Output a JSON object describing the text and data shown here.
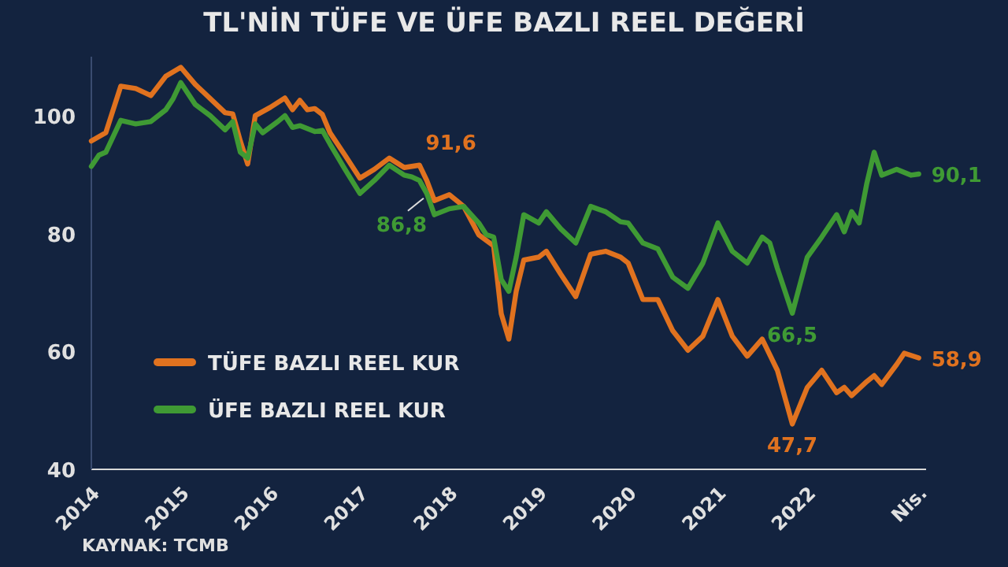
{
  "chart_data": {
    "type": "line",
    "title": "TL'NİN TÜFE VE ÜFE BAZLI REEL DEĞERİ",
    "xlim": [
      "2014-01",
      "2023-05"
    ],
    "ylim": [
      40,
      110
    ],
    "yticks": [
      40,
      60,
      80,
      100
    ],
    "xticks": [
      {
        "value": "2014-01",
        "label": "2014"
      },
      {
        "value": "2015-01",
        "label": "2015"
      },
      {
        "value": "2016-01",
        "label": "2016"
      },
      {
        "value": "2017-01",
        "label": "2017"
      },
      {
        "value": "2018-01",
        "label": "2018"
      },
      {
        "value": "2019-01",
        "label": "2019"
      },
      {
        "value": "2020-01",
        "label": "2020"
      },
      {
        "value": "2021-01",
        "label": "2021"
      },
      {
        "value": "2022-01",
        "label": "2022"
      },
      {
        "value": "2023-04",
        "label": "Nis."
      }
    ],
    "grid": false,
    "legend": "bottom left",
    "marker": "none",
    "line_style": "solid",
    "series": [
      {
        "name": "TÜFE BAZLI REEL KUR",
        "color": "#e0721f",
        "x": [
          "2014-01",
          "2014-03",
          "2014-05",
          "2014-07",
          "2014-09",
          "2014-11",
          "2015-01",
          "2015-03",
          "2015-05",
          "2015-07",
          "2015-08",
          "2015-09",
          "2015-10",
          "2015-11",
          "2016-01",
          "2016-03",
          "2016-04",
          "2016-05",
          "2016-06",
          "2016-07",
          "2016-08",
          "2016-09",
          "2016-11",
          "2017-01",
          "2017-03",
          "2017-05",
          "2017-07",
          "2017-09",
          "2017-10",
          "2017-11",
          "2018-01",
          "2018-03",
          "2018-05",
          "2018-07",
          "2018-08",
          "2018-09",
          "2018-10",
          "2018-11",
          "2019-01",
          "2019-02",
          "2019-04",
          "2019-06",
          "2019-08",
          "2019-10",
          "2019-12",
          "2020-01",
          "2020-03",
          "2020-05",
          "2020-07",
          "2020-09",
          "2020-11",
          "2021-01",
          "2021-03",
          "2021-05",
          "2021-07",
          "2021-09",
          "2021-11",
          "2022-01",
          "2022-03",
          "2022-05",
          "2022-06",
          "2022-07",
          "2022-09",
          "2022-10",
          "2022-11",
          "2023-01",
          "2023-02",
          "2023-04"
        ],
        "values": [
          95.7,
          97.1,
          105,
          104.6,
          103.4,
          106.7,
          108.2,
          105.3,
          102.9,
          100.5,
          100.3,
          95.7,
          91.8,
          100,
          101.4,
          103,
          101,
          102.6,
          101,
          101.2,
          100.2,
          97.1,
          93.3,
          89.4,
          90.9,
          92.8,
          91.2,
          91.6,
          89,
          85.6,
          86.6,
          84.6,
          79.8,
          77.9,
          66.4,
          62.1,
          70.2,
          75.5,
          76,
          77,
          73.1,
          69.3,
          76.5,
          77,
          76,
          75,
          68.8,
          68.8,
          63.5,
          60.2,
          62.6,
          68.8,
          62.6,
          59.2,
          62.1,
          56.8,
          47.7,
          53.9,
          56.8,
          53,
          53.9,
          52.5,
          54.9,
          55.9,
          54.4,
          57.8,
          59.7,
          58.9
        ]
      },
      {
        "name": "ÜFE BAZLI REEL KUR",
        "color": "#3f9a34",
        "x": [
          "2014-01",
          "2014-02",
          "2014-03",
          "2014-05",
          "2014-07",
          "2014-09",
          "2014-11",
          "2014-12",
          "2015-01",
          "2015-03",
          "2015-05",
          "2015-07",
          "2015-08",
          "2015-09",
          "2015-10",
          "2015-11",
          "2015-12",
          "2016-02",
          "2016-03",
          "2016-04",
          "2016-05",
          "2016-07",
          "2016-08",
          "2016-09",
          "2016-11",
          "2017-01",
          "2017-03",
          "2017-05",
          "2017-07",
          "2017-08",
          "2017-09",
          "2017-10",
          "2017-11",
          "2018-01",
          "2018-03",
          "2018-05",
          "2018-06",
          "2018-07",
          "2018-08",
          "2018-09",
          "2018-10",
          "2018-11",
          "2019-01",
          "2019-02",
          "2019-04",
          "2019-06",
          "2019-08",
          "2019-10",
          "2019-12",
          "2020-01",
          "2020-03",
          "2020-05",
          "2020-07",
          "2020-09",
          "2020-11",
          "2021-01",
          "2021-03",
          "2021-05",
          "2021-07",
          "2021-08",
          "2021-09",
          "2021-11",
          "2022-01",
          "2022-03",
          "2022-05",
          "2022-06",
          "2022-07",
          "2022-08",
          "2022-09",
          "2022-10",
          "2022-11",
          "2023-01",
          "2023-03",
          "2023-04"
        ],
        "values": [
          91.4,
          93.3,
          93.8,
          99.2,
          98.6,
          99,
          101,
          102.9,
          105.6,
          101.9,
          100,
          97.6,
          99,
          93.8,
          92.8,
          98.6,
          97.1,
          99,
          100,
          98,
          98.3,
          97.3,
          97.5,
          95.2,
          90.9,
          86.8,
          89,
          91.6,
          89.9,
          89.6,
          89,
          86.8,
          83.2,
          84.2,
          84.6,
          81.8,
          79.8,
          79.4,
          72.2,
          70.2,
          76,
          83.2,
          81.8,
          83.7,
          80.8,
          78.4,
          84.6,
          83.7,
          82,
          81.8,
          78.4,
          77.4,
          72.6,
          70.7,
          75,
          81.8,
          77,
          75,
          79.4,
          78.4,
          74.1,
          66.5,
          76,
          79.4,
          83.2,
          80.3,
          83.7,
          81.8,
          88.5,
          93.8,
          89.9,
          90.9,
          89.9,
          90.1
        ]
      }
    ],
    "annotations": [
      {
        "text": "91,6",
        "x": "2017-09",
        "y": 91.6
      },
      {
        "text": "86,8",
        "x": "2017-10",
        "y": 86.8
      },
      {
        "text": "66,5",
        "x": "2021-11",
        "y": 66.5
      },
      {
        "text": "47,7",
        "x": "2021-11",
        "y": 47.7
      },
      {
        "text": "90,1",
        "x": "2023-04",
        "y": 90.1
      },
      {
        "text": "58,9",
        "x": "2023-04",
        "y": 58.9
      },
      "KAYNAK: TCMB"
    ]
  }
}
